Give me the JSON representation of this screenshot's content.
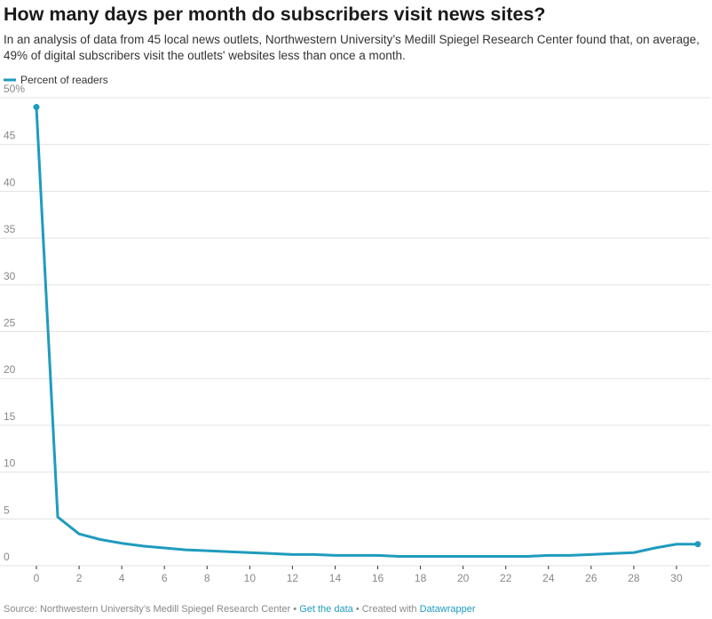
{
  "chart_data": {
    "type": "line",
    "title": "How many days per month do subscribers visit news sites?",
    "subtitle": "In an analysis of data from 45 local news outlets, Northwestern University’s Medill Spiegel Research Center found that, on average, 49% of digital subscribers visit the outlets' websites less than once a month.",
    "x": [
      0,
      1,
      2,
      3,
      4,
      5,
      6,
      7,
      8,
      9,
      10,
      11,
      12,
      13,
      14,
      15,
      16,
      17,
      18,
      19,
      20,
      21,
      22,
      23,
      24,
      25,
      26,
      27,
      28,
      29,
      30,
      31
    ],
    "series": [
      {
        "name": "Percent of readers",
        "color": "#1f9bbd",
        "values": [
          49,
          5.2,
          3.4,
          2.8,
          2.4,
          2.1,
          1.9,
          1.7,
          1.6,
          1.5,
          1.4,
          1.3,
          1.2,
          1.2,
          1.1,
          1.1,
          1.1,
          1.0,
          1.0,
          1.0,
          1.0,
          1.0,
          1.0,
          1.0,
          1.1,
          1.1,
          1.2,
          1.3,
          1.4,
          1.9,
          2.3,
          2.3
        ]
      }
    ],
    "xlim": [
      0,
      31
    ],
    "xticks": [
      0,
      2,
      4,
      6,
      8,
      10,
      12,
      14,
      16,
      18,
      20,
      22,
      24,
      26,
      28,
      30
    ],
    "ylim": [
      0,
      50
    ],
    "yticks": [
      0,
      5,
      10,
      15,
      20,
      25,
      30,
      35,
      40,
      45,
      {
        "value": 50,
        "label": "50%"
      }
    ],
    "grid": true,
    "legend": "top-left",
    "footer": {
      "source": "Source: Northwestern University’s Medill Spiegel Research Center",
      "separator": "•",
      "get_data": "Get the data",
      "created_with": "Created with",
      "datawrapper": "Datawrapper"
    }
  }
}
